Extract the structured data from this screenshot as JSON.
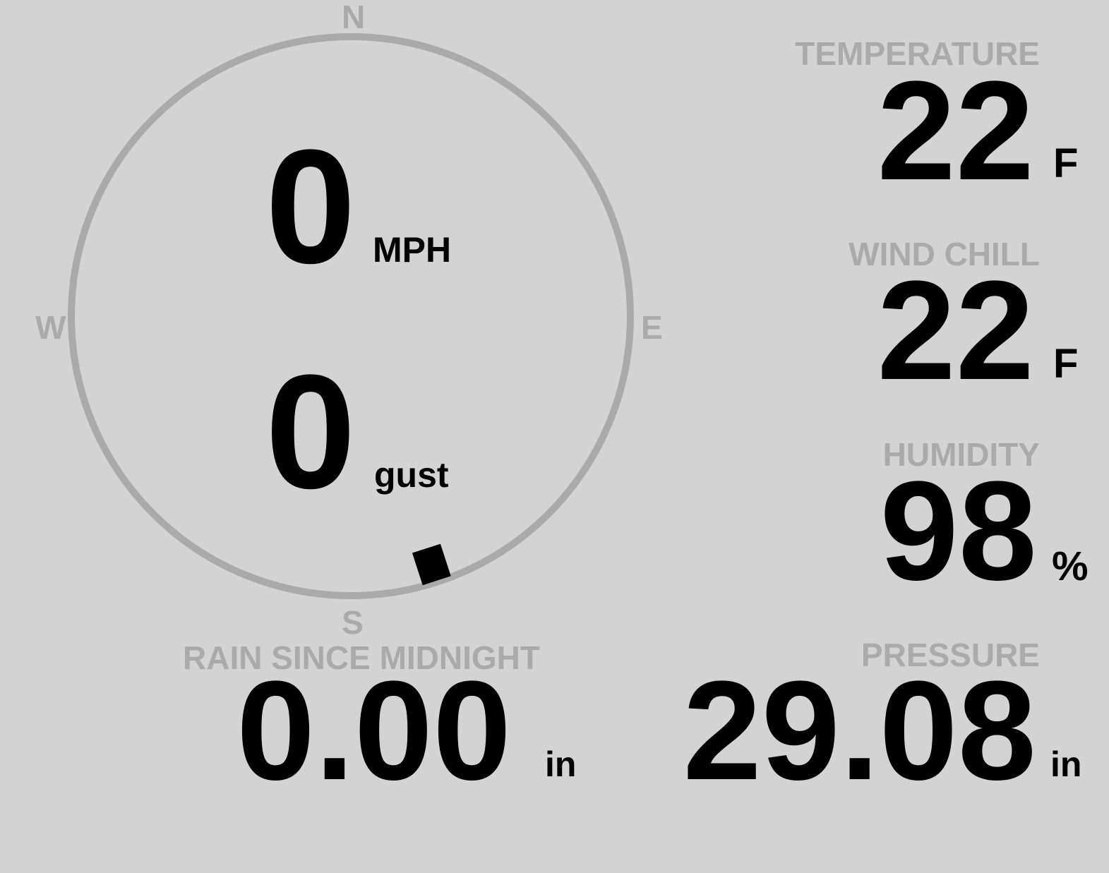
{
  "colors": {
    "background": "#d3d3d3",
    "label": "#aaaaaa",
    "value": "#000000",
    "ring": "#aaaaaa",
    "wind_marker": "#000000"
  },
  "compass": {
    "north": "N",
    "south": "S",
    "east": "E",
    "west": "W",
    "wind_direction_deg": 162
  },
  "wind": {
    "speed": "0",
    "speed_unit": "MPH",
    "gust": "0",
    "gust_unit": "gust"
  },
  "temperature": {
    "label": "TEMPERATURE",
    "value": "22",
    "unit": "F"
  },
  "wind_chill": {
    "label": "WIND CHILL",
    "value": "22",
    "unit": "F"
  },
  "humidity": {
    "label": "HUMIDITY",
    "value": "98",
    "unit": "%"
  },
  "rain": {
    "label": "RAIN SINCE MIDNIGHT",
    "value": "0.00",
    "unit": "in"
  },
  "pressure": {
    "label": "PRESSURE",
    "value": "29.08",
    "unit": "in"
  }
}
